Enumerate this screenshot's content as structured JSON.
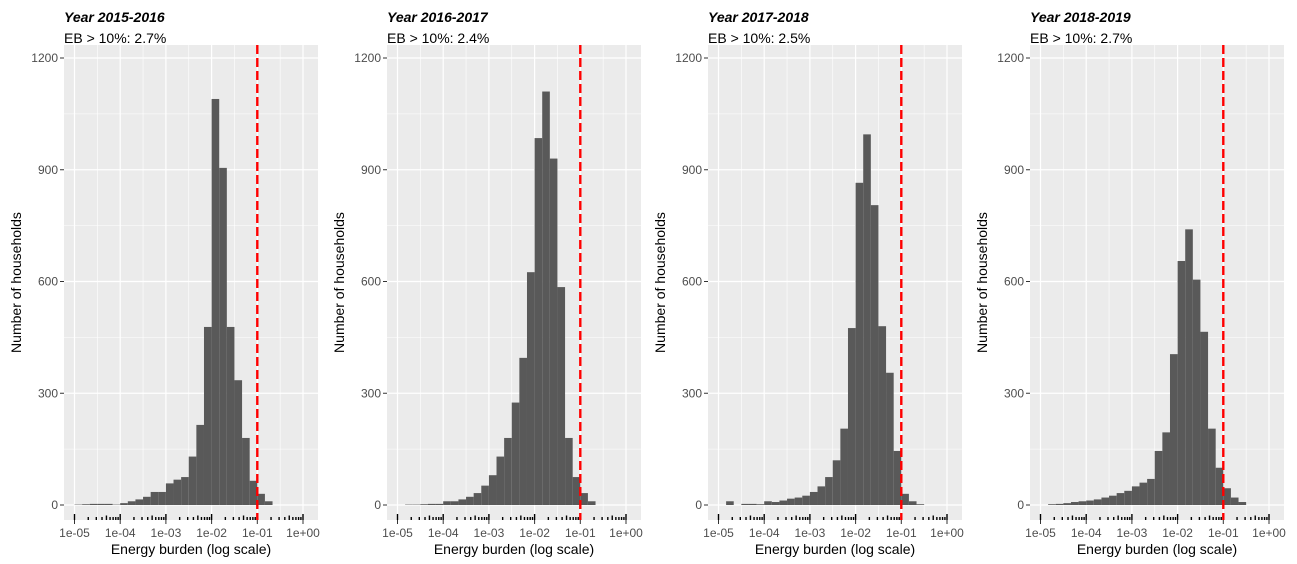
{
  "colors": {
    "panel_bg": "#EBEBEB",
    "grid": "#FFFFFF",
    "bar": "#595959",
    "threshold_line": "#FF0000",
    "rug": "#000000"
  },
  "chart_data": [
    {
      "type": "bar",
      "title": "Year 2015-2016",
      "subtitle": "EB > 10%: 2.7%",
      "xlabel": "Energy burden (log scale)",
      "ylabel": "Number of households",
      "x_scale": "log10",
      "x_ticks": [
        "1e-05",
        "1e-04",
        "1e-03",
        "1e-02",
        "1e-01",
        "1e+00"
      ],
      "y_ticks": [
        "0",
        "300",
        "600",
        "900",
        "1200"
      ],
      "ylim": [
        0,
        1200
      ],
      "threshold": 0.1,
      "grid": true,
      "bin_start": 1e-05,
      "bins_per_decade": 6,
      "values": [
        1,
        2,
        3,
        3,
        3,
        1,
        5,
        10,
        15,
        22,
        35,
        35,
        58,
        68,
        75,
        130,
        215,
        478,
        1090,
        905,
        478,
        335,
        180,
        65,
        30,
        10,
        0,
        0,
        0,
        0
      ]
    },
    {
      "type": "bar",
      "title": "Year 2016-2017",
      "subtitle": "EB > 10%: 2.4%",
      "xlabel": "Energy burden (log scale)",
      "ylabel": "Number of households",
      "x_scale": "log10",
      "x_ticks": [
        "1e-05",
        "1e-04",
        "1e-03",
        "1e-02",
        "1e-01",
        "1e+00"
      ],
      "y_ticks": [
        "0",
        "300",
        "600",
        "900",
        "1200"
      ],
      "ylim": [
        0,
        1200
      ],
      "threshold": 0.1,
      "grid": true,
      "bin_start": 1e-05,
      "bins_per_decade": 6,
      "values": [
        0,
        1,
        1,
        2,
        3,
        3,
        10,
        10,
        15,
        22,
        32,
        52,
        80,
        130,
        180,
        275,
        395,
        625,
        985,
        1110,
        930,
        585,
        180,
        75,
        32,
        10,
        0,
        0,
        0,
        0
      ]
    },
    {
      "type": "bar",
      "title": "Year 2017-2018",
      "subtitle": "EB > 10%: 2.5%",
      "xlabel": "Energy burden (log scale)",
      "ylabel": "Number of households",
      "x_scale": "log10",
      "x_ticks": [
        "1e-05",
        "1e-04",
        "1e-03",
        "1e-02",
        "1e-01",
        "1e+00"
      ],
      "y_ticks": [
        "0",
        "300",
        "600",
        "900",
        "1200"
      ],
      "ylim": [
        0,
        1200
      ],
      "threshold": 0.1,
      "grid": true,
      "bin_start": 1e-05,
      "bins_per_decade": 6,
      "values": [
        0,
        10,
        0,
        3,
        3,
        2,
        10,
        8,
        12,
        17,
        20,
        25,
        35,
        50,
        75,
        120,
        205,
        475,
        865,
        995,
        805,
        480,
        355,
        145,
        30,
        10,
        2,
        0,
        0,
        0
      ]
    },
    {
      "type": "bar",
      "title": "Year 2018-2019",
      "subtitle": "EB > 10%: 2.7%",
      "xlabel": "Energy burden (log scale)",
      "ylabel": "Number of households",
      "x_scale": "log10",
      "x_ticks": [
        "1e-05",
        "1e-04",
        "1e-03",
        "1e-02",
        "1e-01",
        "1e+00"
      ],
      "y_ticks": [
        "0",
        "300",
        "600",
        "900",
        "1200"
      ],
      "ylim": [
        0,
        1200
      ],
      "threshold": 0.1,
      "grid": true,
      "bin_start": 1e-05,
      "bins_per_decade": 6,
      "values": [
        0,
        2,
        3,
        5,
        8,
        10,
        12,
        15,
        20,
        25,
        32,
        38,
        50,
        60,
        70,
        145,
        195,
        405,
        655,
        740,
        605,
        465,
        205,
        100,
        45,
        20,
        8,
        0,
        0,
        0
      ]
    }
  ]
}
